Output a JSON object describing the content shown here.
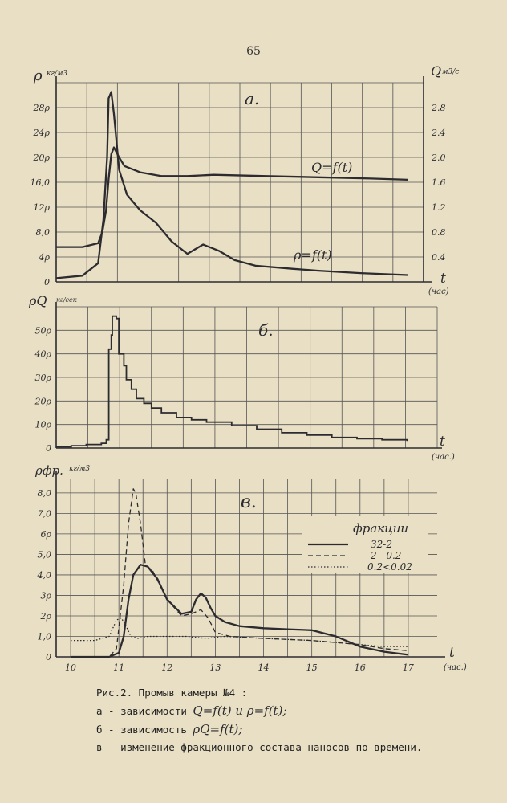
{
  "page": {
    "number": "65"
  },
  "chart_data": [
    {
      "type": "line",
      "panel_label": "а.",
      "left_axis_symbol": "ρ",
      "left_axis_unit": "кг/м3",
      "right_axis_symbol": "Q",
      "right_axis_unit": "м3/с",
      "x_axis_symbol": "t",
      "x_axis_unit": "(час)",
      "left_ticks": [
        "0",
        "4ρ",
        "8,0",
        "12ρ",
        "16,0",
        "20ρ",
        "24ρ",
        "28ρ"
      ],
      "right_ticks": [
        "0.4",
        "0.8",
        "1.2",
        "1.6",
        "2.0",
        "2.4",
        "2.8"
      ],
      "series": [
        {
          "name": "Q=f(t)",
          "axis": "right",
          "x": [
            10.0,
            10.5,
            10.8,
            10.88,
            10.95,
            11.0,
            11.05,
            11.1,
            11.2,
            11.3,
            11.6,
            12.0,
            12.5,
            13.0,
            14.0,
            15.0,
            16.0,
            16.7
          ],
          "y": [
            0.56,
            0.56,
            0.62,
            0.8,
            1.15,
            1.65,
            2.05,
            2.16,
            2.0,
            1.86,
            1.76,
            1.7,
            1.7,
            1.72,
            1.7,
            1.68,
            1.66,
            1.64
          ]
        },
        {
          "name": "ρ=f(t)",
          "axis": "left",
          "x": [
            10.0,
            10.5,
            10.8,
            10.9,
            10.97,
            11.0,
            11.05,
            11.1,
            11.2,
            11.35,
            11.6,
            11.9,
            12.2,
            12.5,
            12.8,
            13.1,
            13.4,
            13.8,
            14.5,
            15.0,
            15.8,
            16.7
          ],
          "y": [
            0.6,
            1.0,
            3.0,
            10.0,
            20.0,
            29.5,
            30.5,
            27.0,
            18.0,
            14.0,
            11.5,
            9.5,
            6.5,
            4.5,
            6.0,
            5.0,
            3.5,
            2.6,
            2.1,
            1.8,
            1.4,
            1.1
          ]
        }
      ]
    },
    {
      "type": "line",
      "panel_label": "б.",
      "left_axis_symbol": "ρQ",
      "left_axis_unit": "кг/сек",
      "x_axis_symbol": "t",
      "x_axis_unit": "(час.)",
      "left_ticks": [
        "0",
        "10ρ",
        "20ρ",
        "30ρ",
        "40ρ",
        "50ρ"
      ],
      "series": [
        {
          "name": "ρQ=f(t)",
          "x": [
            10.0,
            10.3,
            10.6,
            10.9,
            11.0,
            11.05,
            11.1,
            11.12,
            11.2,
            11.25,
            11.35,
            11.4,
            11.5,
            11.6,
            11.75,
            11.9,
            12.1,
            12.4,
            12.7,
            13.0,
            13.5,
            14.0,
            14.5,
            15.0,
            15.5,
            16.0,
            16.5,
            17.0
          ],
          "y": [
            0.5,
            1.0,
            1.5,
            2.0,
            3.5,
            42.0,
            48.0,
            56.0,
            55.0,
            40.0,
            35.0,
            29.0,
            25.0,
            21.0,
            19.0,
            17.0,
            15.0,
            13.0,
            12.0,
            11.0,
            9.5,
            8.0,
            6.5,
            5.5,
            4.5,
            4.0,
            3.5,
            3.0
          ]
        }
      ]
    },
    {
      "type": "line",
      "panel_label": "в.",
      "left_axis_symbol": "ρфр.",
      "left_axis_unit": "кг/м3",
      "x_axis_symbol": "t",
      "x_axis_unit": "(час.)",
      "left_ticks": [
        "0",
        "1,0",
        "2ρ",
        "3ρ",
        "4,0",
        "5,0",
        "6ρ",
        "7,0",
        "8,0"
      ],
      "x_ticks": [
        "10",
        "11",
        "12",
        "13",
        "14",
        "15",
        "16",
        "17"
      ],
      "legend_title": "фракции",
      "series": [
        {
          "name": "32-2",
          "style": "solid",
          "x": [
            10.0,
            10.8,
            11.0,
            11.1,
            11.2,
            11.3,
            11.45,
            11.6,
            11.8,
            12.0,
            12.3,
            12.5,
            12.6,
            12.7,
            12.8,
            12.9,
            13.0,
            13.2,
            13.5,
            14.0,
            14.5,
            15.0,
            15.5,
            16.0,
            16.5,
            17.0
          ],
          "y": [
            0.0,
            0.0,
            0.2,
            1.0,
            2.8,
            4.0,
            4.5,
            4.4,
            3.8,
            2.8,
            2.1,
            2.2,
            2.8,
            3.1,
            2.9,
            2.4,
            2.0,
            1.7,
            1.5,
            1.4,
            1.35,
            1.3,
            1.0,
            0.5,
            0.25,
            0.1
          ]
        },
        {
          "name": "2 - 0.2",
          "style": "dashed",
          "x": [
            10.0,
            10.8,
            10.95,
            11.1,
            11.2,
            11.3,
            11.35,
            11.45,
            11.55,
            11.7,
            12.0,
            12.3,
            12.5,
            12.7,
            12.85,
            13.0,
            13.3,
            14.0,
            15.0,
            16.0,
            16.5,
            17.0
          ],
          "y": [
            0.0,
            0.0,
            0.4,
            3.5,
            6.5,
            8.2,
            8.0,
            6.5,
            4.5,
            4.2,
            2.8,
            2.0,
            2.1,
            2.3,
            1.9,
            1.2,
            1.0,
            0.9,
            0.8,
            0.6,
            0.4,
            0.3
          ]
        },
        {
          "name": "0.2<0.02",
          "style": "dotted",
          "x": [
            10.0,
            10.5,
            10.8,
            10.95,
            11.05,
            11.15,
            11.25,
            11.4,
            11.6,
            12.0,
            12.4,
            12.8,
            13.2,
            14.0,
            15.0,
            15.5,
            16.0,
            16.5,
            17.0
          ],
          "y": [
            0.8,
            0.8,
            1.0,
            1.8,
            1.9,
            1.5,
            1.0,
            0.9,
            1.0,
            1.0,
            1.0,
            0.9,
            1.0,
            0.9,
            0.8,
            0.7,
            0.6,
            0.5,
            0.5
          ]
        }
      ]
    }
  ],
  "caption": {
    "title": "Рис.2. Промыв камеры №4 :",
    "a_prefix": "а - зависимости",
    "a_formula": "Q=f(t)  и  ρ=f(t);",
    "b_prefix": "б - зависимость",
    "b_formula": "ρQ=f(t);",
    "c_text": "в - изменение фракционного состава наносов по времени."
  },
  "colors": {
    "paper": "#e9dfc4",
    "ink": "#2c2c30",
    "grid": "#555555"
  }
}
